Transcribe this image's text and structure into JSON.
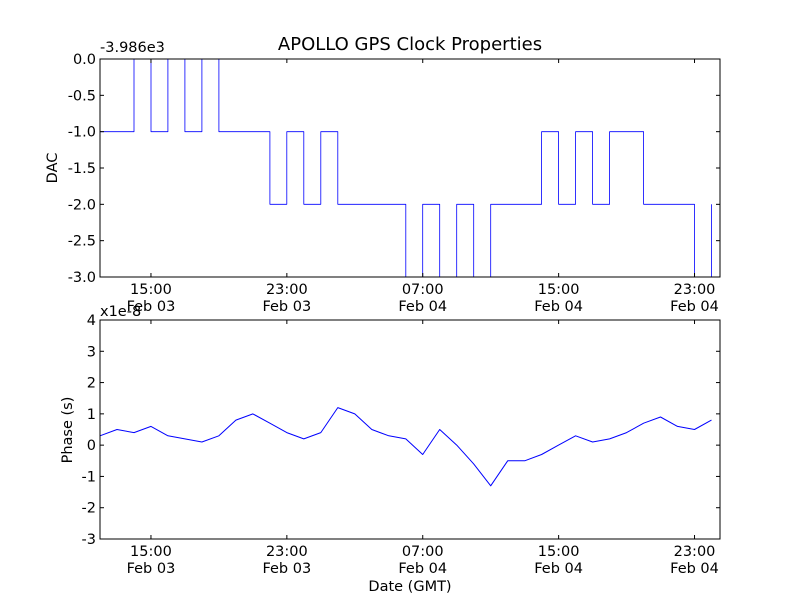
{
  "chart_data": [
    {
      "type": "line",
      "title": "APOLLO GPS Clock Properties",
      "xlabel": "",
      "ylabel": "DAC",
      "y_offset_text": "-3.986e3",
      "x_range": [
        "2011-02-03 12:00",
        "2011-02-05 00:30"
      ],
      "xticks": [
        {
          "x": "2011-02-03 15:00",
          "time": "15:00",
          "date": "Feb 03"
        },
        {
          "x": "2011-02-03 23:00",
          "time": "23:00",
          "date": "Feb 03"
        },
        {
          "x": "2011-02-04 07:00",
          "time": "07:00",
          "date": "Feb 04"
        },
        {
          "x": "2011-02-04 15:00",
          "time": "15:00",
          "date": "Feb 04"
        },
        {
          "x": "2011-02-04 23:00",
          "time": "23:00",
          "date": "Feb 04"
        }
      ],
      "ylim": [
        -3.0,
        0.0
      ],
      "yticks": [
        "0.0",
        "-0.5",
        "-1.0",
        "-1.5",
        "-2.0",
        "-2.5",
        "-3.0"
      ],
      "ytick_values": [
        0.0,
        -0.5,
        -1.0,
        -1.5,
        -2.0,
        -2.5,
        -3.0
      ],
      "series": [
        {
          "color": "#0000ff",
          "x": [
            "2011-02-03 12:00",
            "2011-02-03 13:00",
            "2011-02-03 14:00",
            "2011-02-03 15:00",
            "2011-02-03 16:00",
            "2011-02-03 17:00",
            "2011-02-03 18:00",
            "2011-02-03 19:00",
            "2011-02-03 20:00",
            "2011-02-03 21:00",
            "2011-02-03 22:00",
            "2011-02-03 23:00",
            "2011-02-04 00:00",
            "2011-02-04 01:00",
            "2011-02-04 02:00",
            "2011-02-04 03:00",
            "2011-02-04 04:00",
            "2011-02-04 05:00",
            "2011-02-04 06:00",
            "2011-02-04 07:00",
            "2011-02-04 08:00",
            "2011-02-04 09:00",
            "2011-02-04 10:00",
            "2011-02-04 11:00",
            "2011-02-04 12:00",
            "2011-02-04 13:00",
            "2011-02-04 14:00",
            "2011-02-04 15:00",
            "2011-02-04 16:00",
            "2011-02-04 17:00",
            "2011-02-04 18:00",
            "2011-02-04 19:00",
            "2011-02-04 20:00",
            "2011-02-04 21:00",
            "2011-02-04 22:00",
            "2011-02-04 23:00",
            "2011-02-05 00:00"
          ],
          "values": [
            -1,
            -1,
            0,
            -1,
            0,
            -1,
            0,
            -1,
            -1,
            -1,
            -2,
            -1,
            -2,
            -1,
            -2,
            -2,
            -2,
            -2,
            -3,
            -2,
            -3,
            -2,
            -3,
            -2,
            -2,
            -2,
            -1,
            -2,
            -1,
            -2,
            -1,
            -1,
            -2,
            -2,
            -2,
            -3,
            -2
          ]
        }
      ]
    },
    {
      "type": "line",
      "title": "",
      "xlabel": "Date (GMT)",
      "ylabel": "Phase (s)",
      "y_offset_text": "x1e-8",
      "x_range": [
        "2011-02-03 12:00",
        "2011-02-05 00:30"
      ],
      "xticks": [
        {
          "x": "2011-02-03 15:00",
          "time": "15:00",
          "date": "Feb 03"
        },
        {
          "x": "2011-02-03 23:00",
          "time": "23:00",
          "date": "Feb 03"
        },
        {
          "x": "2011-02-04 07:00",
          "time": "07:00",
          "date": "Feb 04"
        },
        {
          "x": "2011-02-04 15:00",
          "time": "15:00",
          "date": "Feb 04"
        },
        {
          "x": "2011-02-04 23:00",
          "time": "23:00",
          "date": "Feb 04"
        }
      ],
      "ylim": [
        -3,
        4
      ],
      "yticks": [
        "4",
        "3",
        "2",
        "1",
        "0",
        "-1",
        "-2",
        "-3"
      ],
      "ytick_values": [
        4,
        3,
        2,
        1,
        0,
        -1,
        -2,
        -3
      ],
      "series": [
        {
          "color": "#0000ff",
          "x": [
            "2011-02-03 12:00",
            "2011-02-03 13:00",
            "2011-02-03 14:00",
            "2011-02-03 15:00",
            "2011-02-03 16:00",
            "2011-02-03 17:00",
            "2011-02-03 18:00",
            "2011-02-03 19:00",
            "2011-02-03 20:00",
            "2011-02-03 21:00",
            "2011-02-03 22:00",
            "2011-02-03 23:00",
            "2011-02-04 00:00",
            "2011-02-04 01:00",
            "2011-02-04 02:00",
            "2011-02-04 03:00",
            "2011-02-04 04:00",
            "2011-02-04 05:00",
            "2011-02-04 06:00",
            "2011-02-04 07:00",
            "2011-02-04 08:00",
            "2011-02-04 09:00",
            "2011-02-04 10:00",
            "2011-02-04 11:00",
            "2011-02-04 12:00",
            "2011-02-04 13:00",
            "2011-02-04 14:00",
            "2011-02-04 15:00",
            "2011-02-04 16:00",
            "2011-02-04 17:00",
            "2011-02-04 18:00",
            "2011-02-04 19:00",
            "2011-02-04 20:00",
            "2011-02-04 21:00",
            "2011-02-04 22:00",
            "2011-02-04 23:00",
            "2011-02-05 00:00"
          ],
          "values": [
            0.3,
            0.5,
            0.4,
            0.6,
            0.3,
            0.2,
            0.1,
            0.3,
            0.8,
            1.0,
            0.7,
            0.4,
            0.2,
            0.4,
            1.2,
            1.0,
            0.5,
            0.3,
            0.2,
            -0.3,
            0.5,
            0.0,
            -0.6,
            -1.3,
            -0.5,
            -0.5,
            -0.3,
            0.0,
            0.3,
            0.1,
            0.2,
            0.4,
            0.7,
            0.9,
            0.6,
            0.5,
            0.8
          ]
        }
      ]
    }
  ]
}
